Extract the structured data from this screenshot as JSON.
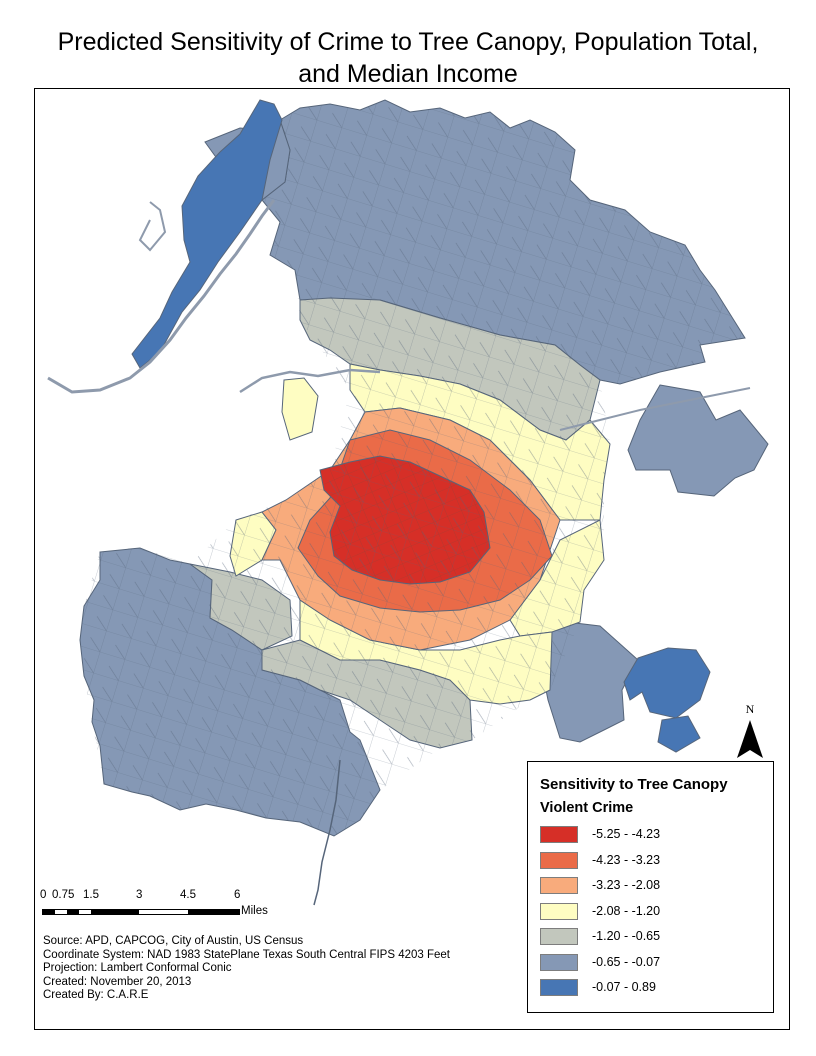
{
  "title": {
    "line1": "Predicted Sensitivity of Crime to Tree Canopy, Population Total,",
    "line2": "and Median Income"
  },
  "legend": {
    "heading": "Sensitivity to Tree Canopy",
    "subheading": "Violent Crime",
    "classes": [
      {
        "label": "-5.25 - -4.23",
        "color": "#d62f27"
      },
      {
        "label": "-4.23 - -3.23",
        "color": "#ea6b48"
      },
      {
        "label": "-3.23 - -2.08",
        "color": "#f8ab7c"
      },
      {
        "label": "-2.08 - -1.20",
        "color": "#fefdc2"
      },
      {
        "label": "-1.20 - -0.65",
        "color": "#c2c7bd"
      },
      {
        "label": "-0.65 - -0.07",
        "color": "#8598b5"
      },
      {
        "label": "-0.07 - 0.89",
        "color": "#4776b4"
      }
    ]
  },
  "scale_bar": {
    "ticks": [
      "0",
      "0.75",
      "1.5",
      "3",
      "4.5",
      "6"
    ],
    "units": "Miles"
  },
  "credits": {
    "source": "Source: APD, CAPCOG, City of Austin, US Census",
    "coordinate_system": "Coordinate System: NAD 1983 StatePlane Texas South Central FIPS 4203 Feet",
    "projection": "Projection: Lambert Conformal Conic",
    "created": "Created: November 20, 2013",
    "created_by": "Created By: C.A.R.E"
  },
  "north_arrow": {
    "letter": "N"
  },
  "colors": {
    "boundary": "#56657a",
    "river": "#8e9aac"
  }
}
